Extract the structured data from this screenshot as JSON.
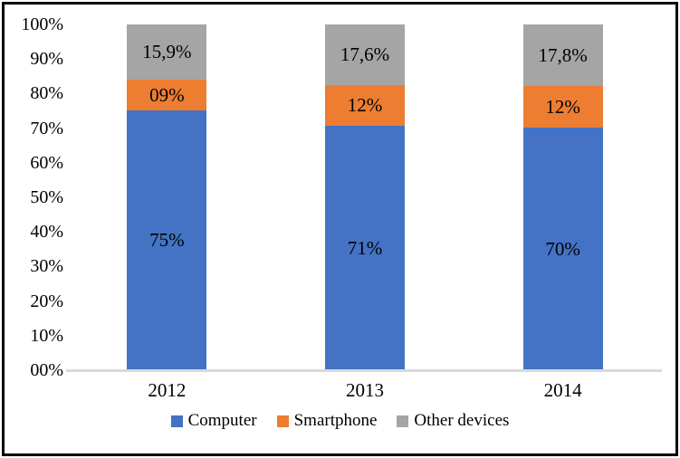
{
  "chart_data": {
    "type": "bar",
    "subtype": "stacked-100",
    "title": "",
    "categories": [
      "2012",
      "2013",
      "2014"
    ],
    "series": [
      {
        "name": "Computer",
        "color": "#4472c4",
        "values": [
          75,
          71,
          70
        ],
        "labels": [
          "75%",
          "71%",
          "70%"
        ]
      },
      {
        "name": "Smartphone",
        "color": "#ed7d31",
        "values": [
          9,
          12,
          12
        ],
        "labels": [
          "09%",
          "12%",
          "12%"
        ]
      },
      {
        "name": "Other devices",
        "color": "#a5a5a5",
        "values": [
          15.9,
          17.6,
          17.8
        ],
        "labels": [
          "15,9%",
          "17,6%",
          "17,8%"
        ]
      }
    ],
    "y_axis": {
      "min": 0,
      "max": 100,
      "ticks": [
        "00%",
        "10%",
        "20%",
        "30%",
        "40%",
        "50%",
        "60%",
        "70%",
        "80%",
        "90%",
        "100%"
      ]
    },
    "xlabel": "",
    "ylabel": "",
    "gridlines": false,
    "legend_position": "bottom"
  },
  "colors": {
    "background": "#ffffff",
    "frame_border": "#000000",
    "axis_line": "#d9d9d9",
    "text": "#000000"
  }
}
